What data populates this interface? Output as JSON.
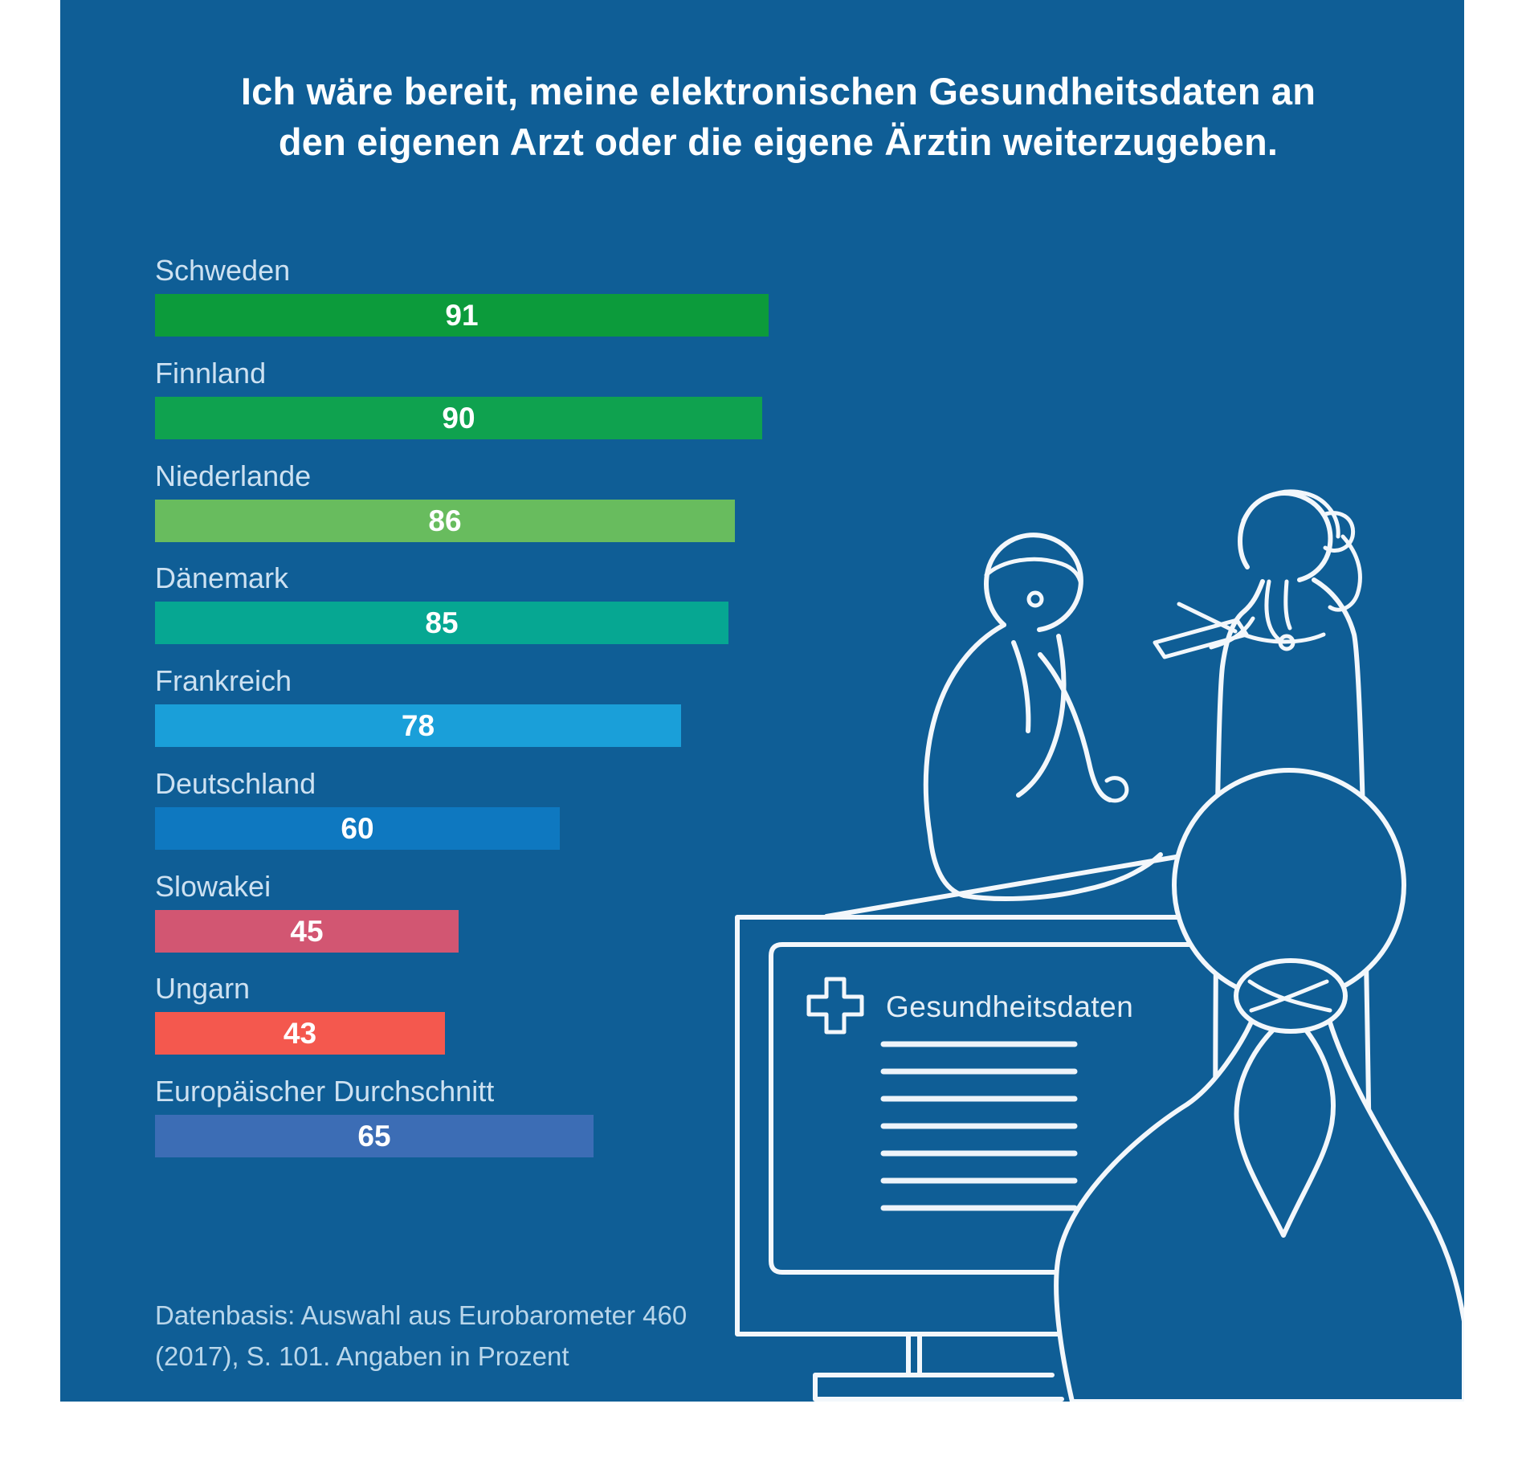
{
  "title": {
    "line1": "Ich wäre bereit, meine elektronischen Gesundheitsdaten an",
    "line2": "den eigenen Arzt oder die eigene Ärztin weiterzugeben."
  },
  "chart_data": {
    "type": "bar",
    "orientation": "horizontal",
    "title": "Ich wäre bereit, meine elektronischen Gesundheitsdaten an den eigenen Arzt oder die eigene Ärztin weiterzugeben.",
    "unit": "percent",
    "xlim": [
      0,
      100
    ],
    "value_labels": "inside-centered",
    "categories": [
      "Schweden",
      "Finnland",
      "Niederlande",
      "Dänemark",
      "Frankreich",
      "Deutschland",
      "Slowakei",
      "Ungarn",
      "Europäischer Durchschnitt"
    ],
    "values": [
      91,
      90,
      86,
      85,
      78,
      60,
      45,
      43,
      65
    ],
    "bar_colors": [
      "#0c9b3b",
      "#0fa24f",
      "#68bc5e",
      "#06a792",
      "#1a9fd9",
      "#0e78c0",
      "#d25672",
      "#f4584e",
      "#3c6db5"
    ]
  },
  "footnote": {
    "line1": "Datenbasis: Auswahl aus Eurobarometer 460",
    "line2": "(2017), S. 101. Angaben in Prozent"
  },
  "illustration": {
    "monitor_label": "Gesundheitsdaten",
    "elements": [
      "medical-cross-icon",
      "monitor",
      "sitting-doctor",
      "standing-doctor-with-tablet",
      "patient-back-view"
    ]
  },
  "colors": {
    "panel_background": "#0f5e96",
    "title_text": "#fdfeff",
    "category_label": "#cde1f1",
    "value_label": "#ffffff",
    "footnote_text": "#b9d6ea",
    "line_art": "#f3f7fb"
  }
}
